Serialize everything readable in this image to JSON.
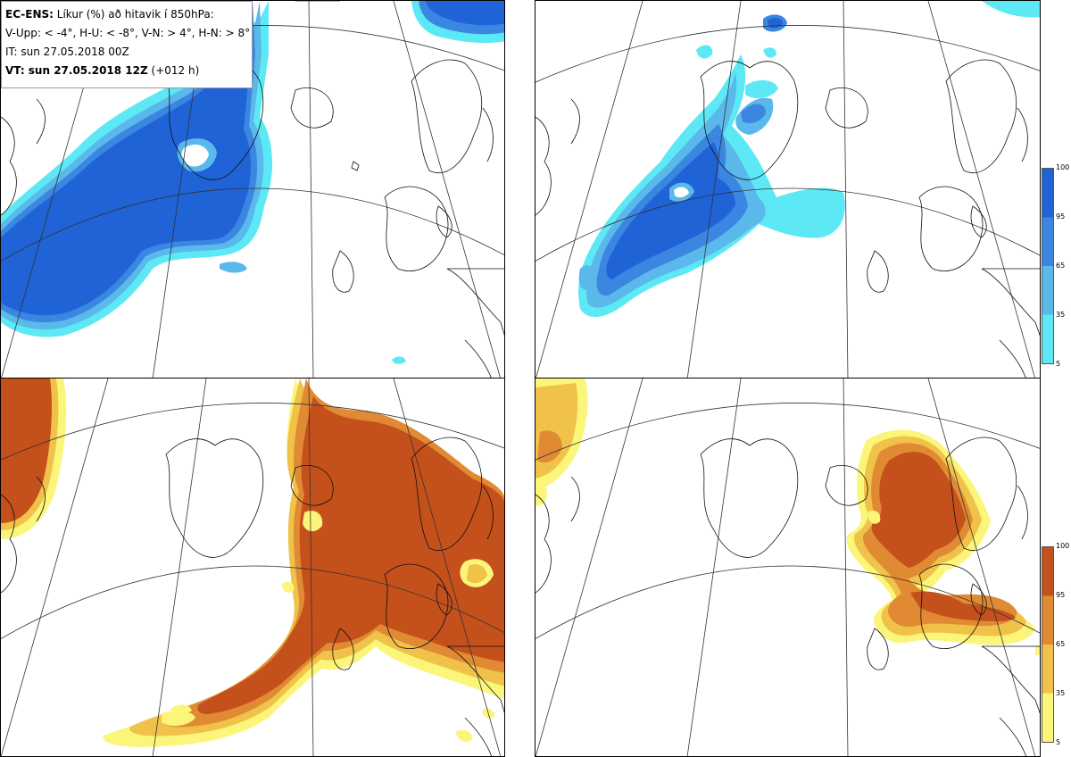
{
  "info": {
    "line1_bold": "EC-ENS:",
    "line1_text": " Líkur (%) að hitavik í 850hPa:",
    "line2": "V-Upp: < -4°, H-U: < -8°, V-N: > 4°, H-N: > 8°",
    "line3": "IT: sun 27.05.2018 00Z",
    "line4_bold": "VT: sun 27.05.2018 12Z",
    "line4_text": " (+012 h)"
  },
  "colorbars": {
    "cold": {
      "ticks": [
        "100",
        "95",
        "65",
        "35",
        "5"
      ],
      "colors": [
        "#1f63d6",
        "#3a86e0",
        "#5bb8ea",
        "#5de8f5"
      ]
    },
    "warm": {
      "ticks": [
        "100",
        "95",
        "65",
        "35",
        "5"
      ],
      "colors": [
        "#c4501c",
        "#e08b33",
        "#f0c24a",
        "#fbf57a"
      ]
    }
  }
}
